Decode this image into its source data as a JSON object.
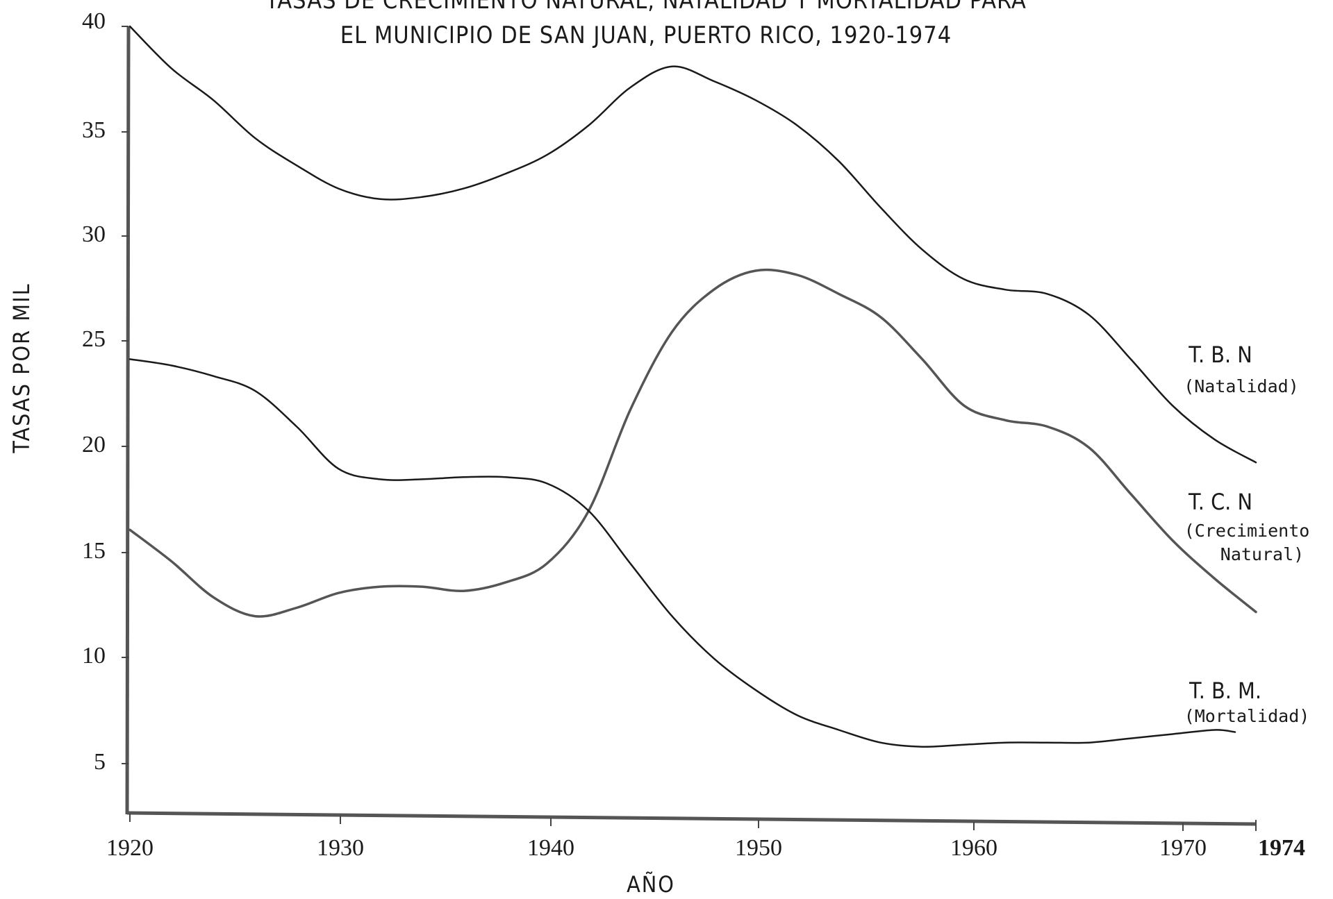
{
  "chart_data": {
    "type": "line",
    "title_lines": [
      "TASAS DE CRECIMIENTO NATURAL, NATALIDAD Y MORTALIDAD PARA",
      "EL MUNICIPIO DE SAN JUAN,  PUERTO RICO, 1920-1974"
    ],
    "xlabel": "AÑO",
    "ylabel": "TASAS POR MIL",
    "xlim": [
      1920,
      1974
    ],
    "ylim": [
      2.5,
      40
    ],
    "x_ticks": [
      "1920",
      "1930",
      "1940",
      "1950",
      "1960",
      "1970",
      "1974"
    ],
    "y_ticks": [
      "40",
      "35",
      "30",
      "25",
      "20",
      "15",
      "10",
      "5"
    ],
    "grid": false,
    "legend": "labels at right end of lines",
    "series": [
      {
        "name": "T. B. N",
        "sub": "(Natalidad)",
        "color": "#1a1a1a",
        "points": [
          [
            1920,
            40.0
          ],
          [
            1922,
            38.0
          ],
          [
            1924,
            36.5
          ],
          [
            1926,
            34.7
          ],
          [
            1928,
            33.4
          ],
          [
            1930,
            32.3
          ],
          [
            1932,
            31.8
          ],
          [
            1934,
            31.9
          ],
          [
            1936,
            32.3
          ],
          [
            1938,
            33.0
          ],
          [
            1940,
            33.9
          ],
          [
            1942,
            35.3
          ],
          [
            1944,
            37.1
          ],
          [
            1946,
            38.1
          ],
          [
            1948,
            37.4
          ],
          [
            1950,
            36.5
          ],
          [
            1952,
            35.3
          ],
          [
            1954,
            33.6
          ],
          [
            1956,
            31.4
          ],
          [
            1958,
            29.4
          ],
          [
            1960,
            28.0
          ],
          [
            1962,
            27.5
          ],
          [
            1964,
            27.3
          ],
          [
            1966,
            26.3
          ],
          [
            1968,
            24.2
          ],
          [
            1970,
            22.0
          ],
          [
            1972,
            20.4
          ],
          [
            1974,
            19.3
          ]
        ]
      },
      {
        "name": "T. C. N",
        "sub_lines": [
          "(Crecimiento",
          "Natural)"
        ],
        "color": "#555555",
        "points": [
          [
            1920,
            16.1
          ],
          [
            1922,
            14.6
          ],
          [
            1924,
            12.9
          ],
          [
            1926,
            12.0
          ],
          [
            1928,
            12.4
          ],
          [
            1930,
            13.1
          ],
          [
            1932,
            13.4
          ],
          [
            1934,
            13.4
          ],
          [
            1936,
            13.2
          ],
          [
            1938,
            13.6
          ],
          [
            1940,
            14.5
          ],
          [
            1942,
            17.0
          ],
          [
            1944,
            21.8
          ],
          [
            1946,
            25.5
          ],
          [
            1948,
            27.5
          ],
          [
            1950,
            28.4
          ],
          [
            1952,
            28.2
          ],
          [
            1954,
            27.3
          ],
          [
            1956,
            26.2
          ],
          [
            1958,
            24.2
          ],
          [
            1960,
            22.0
          ],
          [
            1962,
            21.3
          ],
          [
            1964,
            21.0
          ],
          [
            1966,
            20.0
          ],
          [
            1968,
            17.8
          ],
          [
            1970,
            15.6
          ],
          [
            1972,
            13.8
          ],
          [
            1974,
            12.2
          ]
        ]
      },
      {
        "name": "T. B. M.",
        "sub": "(Mortalidad)",
        "color": "#1a1a1a",
        "points": [
          [
            1920,
            24.2
          ],
          [
            1922,
            23.9
          ],
          [
            1924,
            23.4
          ],
          [
            1926,
            22.7
          ],
          [
            1928,
            21.0
          ],
          [
            1930,
            19.0
          ],
          [
            1932,
            18.5
          ],
          [
            1934,
            18.5
          ],
          [
            1936,
            18.6
          ],
          [
            1938,
            18.6
          ],
          [
            1940,
            18.3
          ],
          [
            1942,
            17.0
          ],
          [
            1944,
            14.5
          ],
          [
            1946,
            12.0
          ],
          [
            1948,
            10.0
          ],
          [
            1950,
            8.5
          ],
          [
            1952,
            7.3
          ],
          [
            1954,
            6.6
          ],
          [
            1956,
            6.0
          ],
          [
            1958,
            5.8
          ],
          [
            1960,
            5.9
          ],
          [
            1962,
            6.0
          ],
          [
            1964,
            6.0
          ],
          [
            1966,
            6.0
          ],
          [
            1968,
            6.2
          ],
          [
            1970,
            6.4
          ],
          [
            1972,
            6.6
          ],
          [
            1973,
            6.5
          ]
        ]
      }
    ]
  }
}
